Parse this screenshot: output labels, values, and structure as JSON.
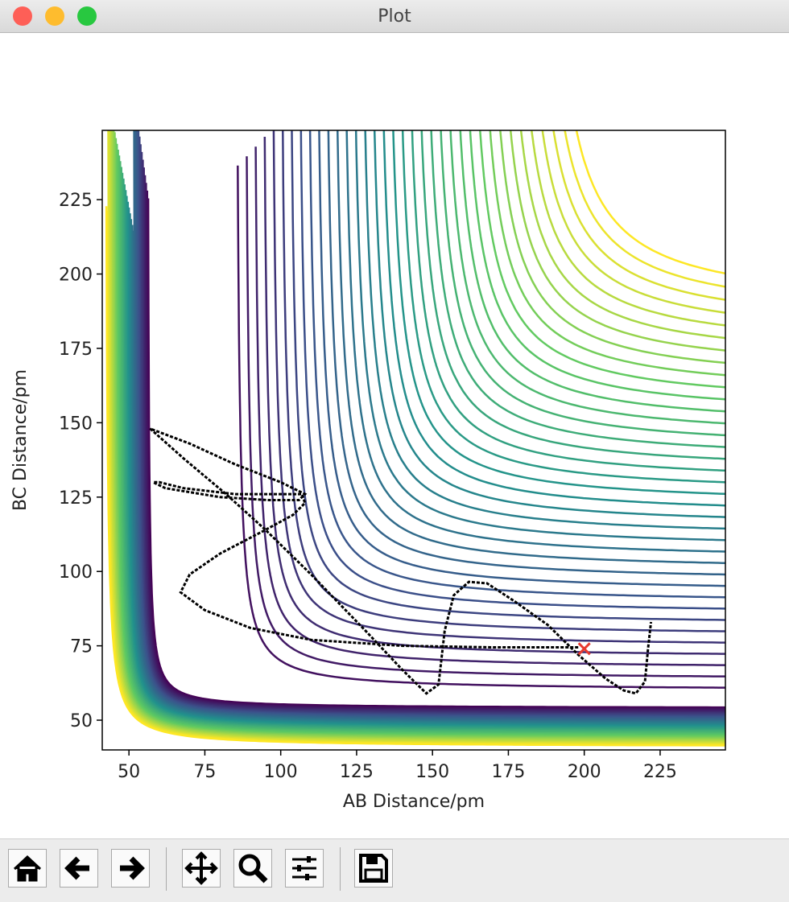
{
  "window": {
    "title": "Plot"
  },
  "chart_data": {
    "type": "line",
    "xlabel": "AB Distance/pm",
    "ylabel": "BC Distance/pm",
    "xlim": [
      41.2,
      246.5
    ],
    "ylim": [
      40,
      248.3
    ],
    "xticks": [
      50,
      75,
      100,
      125,
      150,
      175,
      200,
      225
    ],
    "yticks": [
      50,
      75,
      100,
      125,
      150,
      175,
      200,
      225
    ],
    "series": [
      {
        "color": "#000000",
        "x": [
          198,
          170,
          140,
          110,
          90,
          75,
          67,
          70,
          80,
          95,
          104,
          108,
          107,
          100,
          85,
          68,
          60,
          58,
          62,
          80,
          96,
          106,
          108,
          100,
          85,
          70,
          57,
          68,
          82,
          95,
          110,
          128,
          140,
          148,
          152,
          154,
          157,
          162,
          168,
          177,
          188,
          198,
          207,
          213,
          217,
          220,
          221,
          222
        ],
        "values": [
          74.5,
          74.5,
          75,
          77,
          81,
          87,
          93,
          99,
          106,
          114,
          119,
          123,
          126,
          126,
          126,
          128,
          130,
          130,
          128,
          125,
          124,
          124,
          126,
          130,
          136,
          143,
          148,
          138,
          126,
          114,
          99,
          80,
          67,
          59,
          62,
          80,
          92,
          96.5,
          96,
          90,
          82,
          72,
          64,
          60,
          59,
          63,
          74,
          83
        ]
      }
    ],
    "marker": {
      "x": [
        200
      ],
      "values": [
        74
      ],
      "color": "#e8392f"
    }
  }
}
